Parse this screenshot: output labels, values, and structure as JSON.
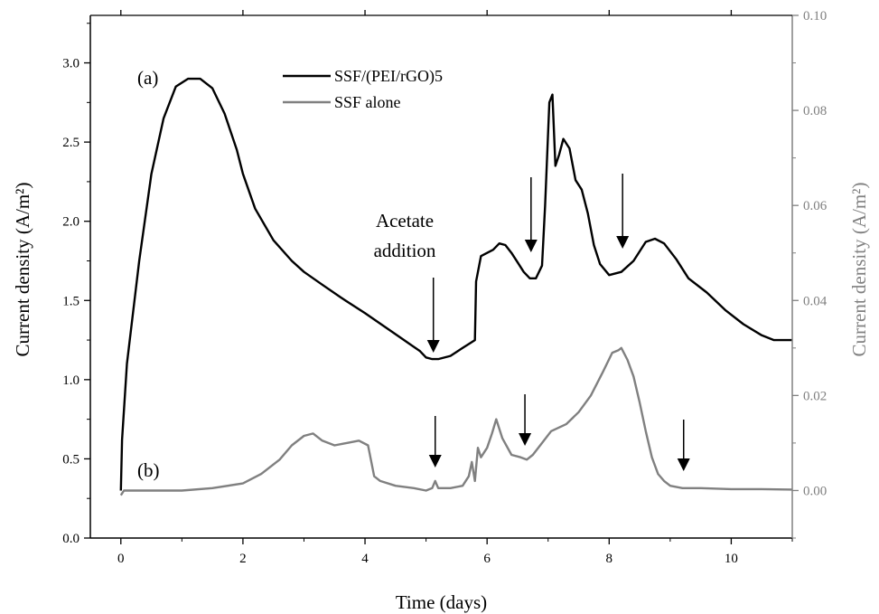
{
  "chart_data": {
    "type": "line",
    "xlabel": "Time (days)",
    "ylabel_left": "Current density (A/m²)",
    "ylabel_right": "Current density (A/m²)",
    "xlim": [
      -0.5,
      11
    ],
    "ylim_left": [
      0,
      3.3
    ],
    "ylim_right": [
      -0.01,
      0.1
    ],
    "x_ticks": [
      0,
      2,
      4,
      6,
      8,
      10
    ],
    "y_left_ticks": [
      0.0,
      0.5,
      1.0,
      1.5,
      2.0,
      2.5,
      3.0
    ],
    "y_right_ticks": [
      0.0,
      0.02,
      0.04,
      0.06,
      0.08,
      0.1
    ],
    "x_tick_labels": [
      "0",
      "2",
      "4",
      "6",
      "8",
      "10"
    ],
    "y_left_tick_labels": [
      "0.0",
      "0.5",
      "1.0",
      "1.5",
      "2.0",
      "2.5",
      "3.0"
    ],
    "y_right_tick_labels": [
      "0.00",
      "0.02",
      "0.04",
      "0.06",
      "0.08",
      "0.10"
    ],
    "grid": false,
    "legend_position": "top-center",
    "colors": {
      "series_a": "#000000",
      "series_b": "#808080",
      "right_axis": "#808080"
    },
    "series": [
      {
        "name": "SSF/(PEI/rGO)5",
        "axis": "left",
        "x": [
          0,
          0.02,
          0.1,
          0.3,
          0.5,
          0.7,
          0.9,
          1.1,
          1.3,
          1.5,
          1.7,
          1.9,
          2.0,
          2.2,
          2.5,
          2.8,
          3.0,
          3.3,
          3.6,
          4.0,
          4.3,
          4.6,
          4.9,
          5.0,
          5.1,
          5.2,
          5.4,
          5.6,
          5.8,
          5.82,
          5.9,
          6.1,
          6.2,
          6.3,
          6.4,
          6.5,
          6.6,
          6.7,
          6.8,
          6.9,
          6.95,
          7.02,
          7.07,
          7.12,
          7.18,
          7.25,
          7.35,
          7.45,
          7.55,
          7.65,
          7.75,
          7.85,
          8.0,
          8.2,
          8.4,
          8.6,
          8.75,
          8.9,
          9.1,
          9.3,
          9.6,
          9.9,
          10.2,
          10.5,
          10.7,
          11.0
        ],
        "y": [
          0.3,
          0.62,
          1.1,
          1.75,
          2.3,
          2.65,
          2.85,
          2.9,
          2.9,
          2.84,
          2.68,
          2.45,
          2.3,
          2.08,
          1.88,
          1.75,
          1.68,
          1.6,
          1.52,
          1.42,
          1.34,
          1.26,
          1.18,
          1.14,
          1.13,
          1.13,
          1.15,
          1.2,
          1.25,
          1.62,
          1.78,
          1.82,
          1.86,
          1.85,
          1.8,
          1.74,
          1.68,
          1.64,
          1.64,
          1.72,
          2.1,
          2.75,
          2.8,
          2.35,
          2.42,
          2.52,
          2.46,
          2.26,
          2.2,
          2.05,
          1.85,
          1.73,
          1.66,
          1.68,
          1.75,
          1.87,
          1.89,
          1.86,
          1.76,
          1.64,
          1.55,
          1.44,
          1.35,
          1.28,
          1.25,
          1.25
        ]
      },
      {
        "name": "SSF alone",
        "axis": "right",
        "x": [
          0,
          0.05,
          0.5,
          1.0,
          1.5,
          2.0,
          2.3,
          2.6,
          2.8,
          3.0,
          3.15,
          3.3,
          3.5,
          3.7,
          3.9,
          4.05,
          4.15,
          4.25,
          4.5,
          4.8,
          5.0,
          5.1,
          5.15,
          5.2,
          5.4,
          5.6,
          5.7,
          5.75,
          5.8,
          5.85,
          5.9,
          6.0,
          6.08,
          6.15,
          6.25,
          6.4,
          6.55,
          6.65,
          6.75,
          6.9,
          7.05,
          7.3,
          7.5,
          7.7,
          7.9,
          8.05,
          8.15,
          8.2,
          8.3,
          8.4,
          8.5,
          8.6,
          8.7,
          8.8,
          8.9,
          9.0,
          9.2,
          9.5,
          10.0,
          10.5,
          11.0
        ],
        "y": [
          -0.001,
          0.0,
          0.0,
          0.0,
          0.0005,
          0.0015,
          0.0035,
          0.0065,
          0.0095,
          0.0115,
          0.012,
          0.0105,
          0.0095,
          0.01,
          0.0105,
          0.0095,
          0.003,
          0.002,
          0.001,
          0.0005,
          0.0,
          0.0005,
          0.002,
          0.0005,
          0.0005,
          0.001,
          0.003,
          0.006,
          0.002,
          0.009,
          0.007,
          0.009,
          0.012,
          0.015,
          0.011,
          0.0075,
          0.007,
          0.0065,
          0.0075,
          0.01,
          0.0125,
          0.014,
          0.0165,
          0.02,
          0.025,
          0.029,
          0.0295,
          0.03,
          0.0275,
          0.024,
          0.0185,
          0.0125,
          0.007,
          0.0035,
          0.002,
          0.001,
          0.0005,
          0.0005,
          0.0003,
          0.0003,
          0.0002
        ]
      }
    ]
  },
  "legend": {
    "a_label": "SSF/(PEI/rGO)5",
    "b_label": "SSF alone"
  },
  "annotations": {
    "label_a": "(a)",
    "label_b": "(b)",
    "acetate_line1": "Acetate",
    "acetate_line2": "addition"
  }
}
